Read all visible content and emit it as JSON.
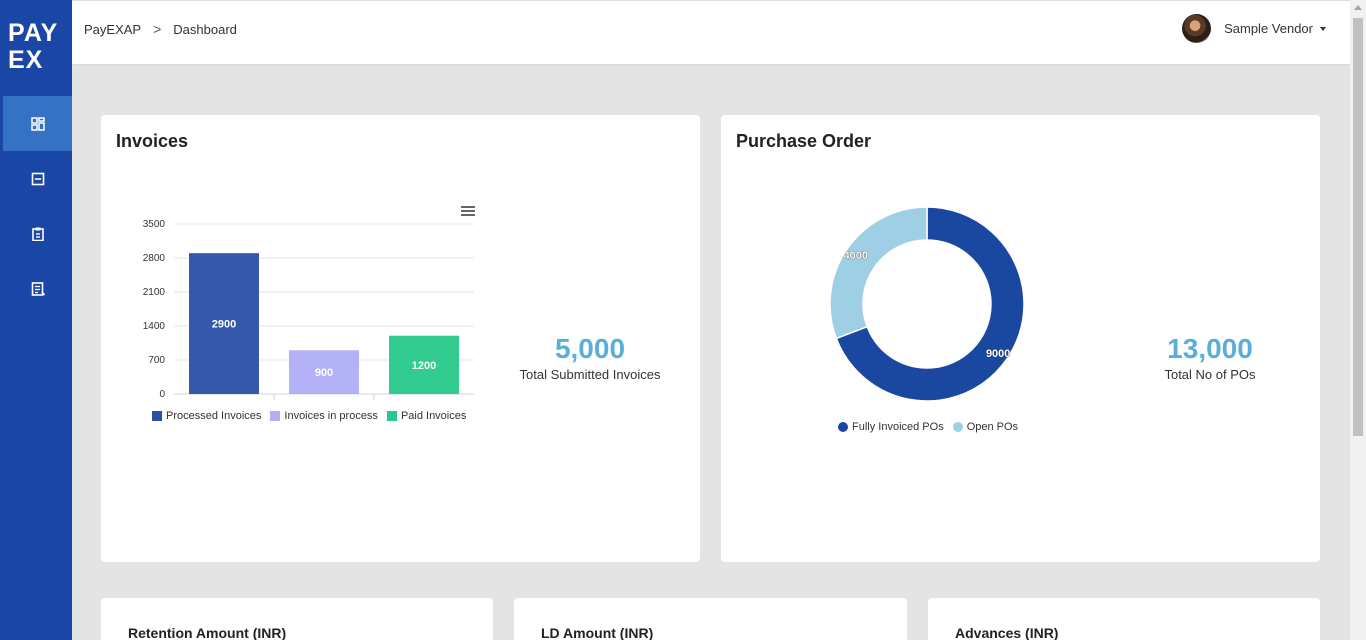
{
  "logo": {
    "line1": "PAY",
    "line2": "EX"
  },
  "sidebar": {
    "items": [
      {
        "icon": "dashboard-icon",
        "active": true
      },
      {
        "icon": "document-icon",
        "active": false
      },
      {
        "icon": "clipboard-icon",
        "active": false
      },
      {
        "icon": "report-icon",
        "active": false
      }
    ]
  },
  "breadcrumb": {
    "root": "PayEXAP",
    "separator": ">",
    "current": "Dashboard"
  },
  "user": {
    "name": "Sample Vendor"
  },
  "invoices": {
    "title": "Invoices",
    "kpi_value": "5,000",
    "kpi_label": "Total Submitted Invoices"
  },
  "purchase_order": {
    "title": "Purchase Order",
    "kpi_value": "13,000",
    "kpi_label": "Total No of POs"
  },
  "bottom_cards": {
    "retention": "Retention Amount (INR)",
    "ld": "LD Amount (INR)",
    "advances": "Advances (INR)"
  },
  "colors": {
    "sidebar": "#1a47a6",
    "processed": "#2b4fa5",
    "in_process": "#b0aef5",
    "paid": "#27c98b",
    "fully_invoiced": "#1a47a0",
    "open": "#9fcfe4",
    "kpi": "#5aaed8"
  },
  "chart_data": [
    {
      "type": "bar",
      "categories": [
        "Processed Invoices",
        "Invoices in process",
        "Paid Invoices"
      ],
      "values": [
        2900,
        900,
        1200
      ],
      "colors": [
        "#2b4fa5",
        "#b0aef5",
        "#27c98b"
      ],
      "ylim": [
        0,
        3500
      ],
      "yticks": [
        "0",
        "700",
        "1400",
        "2100",
        "2800",
        "3500"
      ],
      "legend": [
        "Processed Invoices",
        "Invoices in process",
        "Paid Invoices"
      ],
      "legend_position": "bottom",
      "grid": true
    },
    {
      "type": "pie",
      "donut": true,
      "labels": [
        "Fully Invoiced POs",
        "Open POs"
      ],
      "values": [
        9000,
        4000
      ],
      "colors": [
        "#1a47a0",
        "#9fcfe4"
      ],
      "legend": [
        "Fully Invoiced POs",
        "Open POs"
      ],
      "legend_position": "bottom"
    }
  ]
}
